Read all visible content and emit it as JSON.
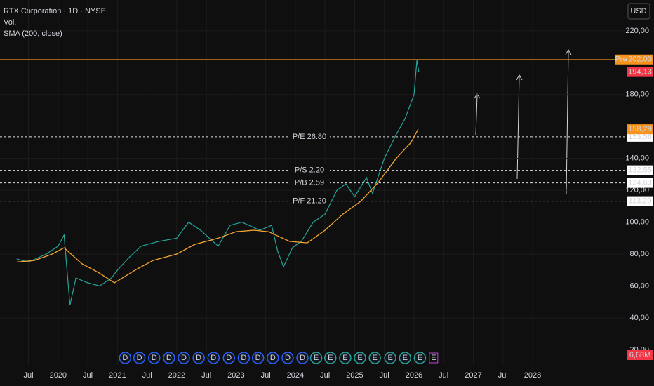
{
  "chart_data": {
    "type": "line",
    "title": "RTX Corporation · 1D · NYSE",
    "volume_title": "Vol.",
    "currency": "USD",
    "xlim": [
      2019.02,
      2029.55
    ],
    "xticks": [
      {
        "value": 2019.5,
        "label": "Jul"
      },
      2020,
      {
        "value": 2020.5,
        "label": "Jul"
      },
      2021,
      {
        "value": 2021.5,
        "label": "Jul"
      },
      2022,
      {
        "value": 2022.5,
        "label": "Jul"
      },
      2023,
      {
        "value": 2023.5,
        "label": "Jul"
      },
      2024,
      {
        "value": 2024.5,
        "label": "Jul"
      },
      2025,
      {
        "value": 2025.5,
        "label": "Jul"
      },
      2026,
      {
        "value": 2026.5,
        "label": "Jul"
      },
      2027,
      {
        "value": 2027.5,
        "label": "Jul"
      },
      2028
    ],
    "ylim": [
      10.5,
      239.3
    ],
    "yticks": [
      {
        "value": 220,
        "label": "220,00"
      },
      {
        "value": 180,
        "label": "180,00"
      },
      {
        "value": 140,
        "label": "140,00"
      },
      {
        "value": 120,
        "label": "120,00"
      },
      {
        "value": 100,
        "label": "100,00"
      },
      {
        "value": 80,
        "label": "80,00"
      },
      {
        "value": 60,
        "label": "60,00"
      },
      {
        "value": 40,
        "label": "40,00"
      },
      {
        "value": 20,
        "label": "20,00"
      }
    ],
    "series": [
      {
        "color": "#26a69a",
        "x": [
          2019.3,
          2019.5,
          2019.8,
          2020.0,
          2020.1,
          2020.2,
          2020.3,
          2020.5,
          2020.7,
          2020.9,
          2021.0,
          2021.2,
          2021.4,
          2021.7,
          2022.0,
          2022.2,
          2022.4,
          2022.7,
          2022.9,
          2023.1,
          2023.4,
          2023.6,
          2023.7,
          2023.8,
          2023.95,
          2024.1,
          2024.3,
          2024.5,
          2024.7,
          2024.85,
          2025.0,
          2025.2,
          2025.3,
          2025.5,
          2025.7,
          2025.85,
          2026.0,
          2026.05,
          2026.08
        ],
        "values": [
          77,
          75,
          80,
          85,
          92,
          48,
          65,
          62,
          60,
          65,
          70,
          78,
          85,
          88,
          90,
          100,
          95,
          85,
          98,
          100,
          95,
          98,
          82,
          72,
          84,
          88,
          100,
          105,
          120,
          124,
          116,
          128,
          118,
          140,
          155,
          165,
          180,
          202,
          194.13
        ]
      },
      {
        "name": "SMA (200, close)",
        "color": "#f7a531",
        "x": [
          2019.3,
          2019.6,
          2019.9,
          2020.1,
          2020.4,
          2020.7,
          2020.95,
          2021.3,
          2021.6,
          2022.0,
          2022.3,
          2022.7,
          2023.0,
          2023.3,
          2023.55,
          2023.9,
          2024.2,
          2024.5,
          2024.8,
          2025.1,
          2025.4,
          2025.7,
          2025.95,
          2026.07
        ],
        "values": [
          75,
          76,
          80,
          84,
          74,
          68,
          62,
          70,
          76,
          80,
          86,
          90,
          94,
          95,
          94,
          88,
          87,
          95,
          105,
          113,
          125,
          140,
          150,
          158.29
        ]
      }
    ],
    "levels": [
      {
        "name": "P/E 26.80",
        "value": 153.56,
        "label": "153,56"
      },
      {
        "name": "P/S 2.20",
        "value": 132.55,
        "label": "132,55"
      },
      {
        "name": "P/B 2.59",
        "value": 124.63,
        "label": "124,63"
      },
      {
        "name": "P/F 21.20",
        "value": 113.2,
        "label": "113,20"
      }
    ],
    "price_labels": [
      {
        "name": "Pre",
        "value": 202,
        "label": "202,00",
        "color": "#f7931a"
      },
      {
        "value": 194.13,
        "label": "194,13",
        "color": "#f23645"
      },
      {
        "value": 158.29,
        "label": "158,29",
        "color": "#f7931a"
      }
    ],
    "volume_label": "6,68M",
    "events": [
      {
        "x": 2021.13,
        "label": "D"
      },
      {
        "x": 2021.37,
        "label": "D"
      },
      {
        "x": 2021.62,
        "label": "D"
      },
      {
        "x": 2021.87,
        "label": "D"
      },
      {
        "x": 2022.12,
        "label": "D"
      },
      {
        "x": 2022.37,
        "label": "D"
      },
      {
        "x": 2022.62,
        "label": "D"
      },
      {
        "x": 2022.88,
        "label": "D"
      },
      {
        "x": 2023.13,
        "label": "D"
      },
      {
        "x": 2023.37,
        "label": "D"
      },
      {
        "x": 2023.62,
        "label": "D"
      },
      {
        "x": 2023.87,
        "label": "D"
      },
      {
        "x": 2024.12,
        "label": "D"
      },
      {
        "x": 2024.35,
        "label": "E"
      },
      {
        "x": 2024.59,
        "label": "E"
      },
      {
        "x": 2024.84,
        "label": "E"
      },
      {
        "x": 2025.09,
        "label": "E"
      },
      {
        "x": 2025.34,
        "label": "E"
      },
      {
        "x": 2025.6,
        "label": "E"
      },
      {
        "x": 2025.85,
        "label": "E"
      },
      {
        "x": 2026.1,
        "label": "E"
      }
    ],
    "future_events": [
      {
        "x": 2026.33,
        "label": "E"
      }
    ]
  }
}
